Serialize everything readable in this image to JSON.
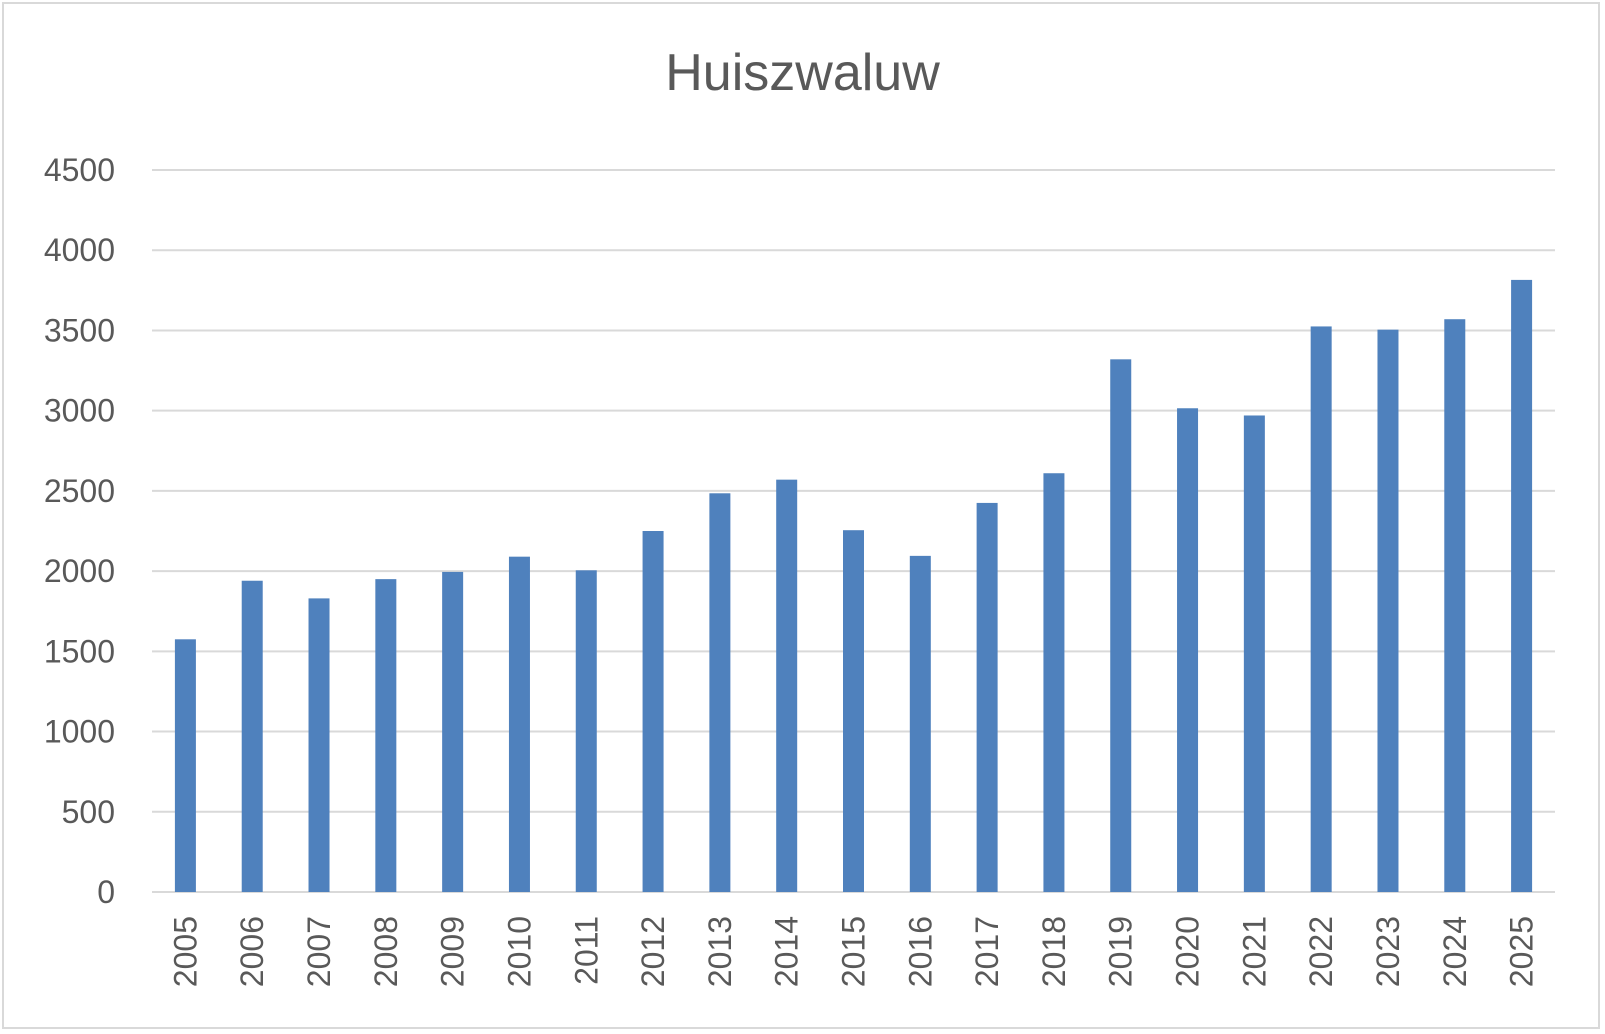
{
  "chart_data": {
    "type": "bar",
    "title": "Huiszwaluw",
    "xlabel": "",
    "ylabel": "",
    "ylim": [
      0,
      4500
    ],
    "yticks": [
      0,
      500,
      1000,
      1500,
      2000,
      2500,
      3000,
      3500,
      4000,
      4500
    ],
    "grid": true,
    "categories": [
      "2005",
      "2006",
      "2007",
      "2008",
      "2009",
      "2010",
      "2011",
      "2012",
      "2013",
      "2014",
      "2015",
      "2016",
      "2017",
      "2018",
      "2019",
      "2020",
      "2021",
      "2022",
      "2023",
      "2024",
      "2025"
    ],
    "values": [
      1575,
      1940,
      1830,
      1950,
      1995,
      2090,
      2005,
      2250,
      2485,
      2570,
      2255,
      2095,
      2425,
      2610,
      3320,
      3015,
      2970,
      3525,
      3505,
      3570,
      3815
    ],
    "colors": {
      "bar": "#4f81bd",
      "grid": "#d9d9d9",
      "text": "#595959"
    }
  }
}
